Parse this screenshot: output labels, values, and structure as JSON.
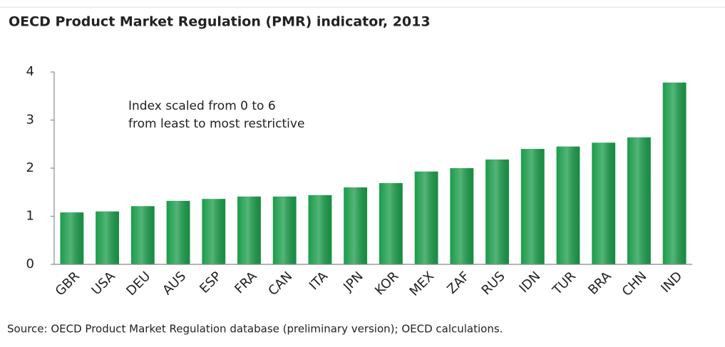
{
  "chart_data": {
    "type": "bar",
    "title": "OECD Product Market Regulation (PMR) indicator, 2013",
    "annotation": [
      "Index scaled from 0 to 6",
      "from least to most restrictive"
    ],
    "source": "Source: OECD Product Market Regulation database (preliminary version); OECD calculations.",
    "categories": [
      "GBR",
      "USA",
      "DEU",
      "AUS",
      "ESP",
      "FRA",
      "CAN",
      "ITA",
      "JPN",
      "KOR",
      "MEX",
      "ZAF",
      "RUS",
      "IDN",
      "TUR",
      "BRA",
      "CHN",
      "IND"
    ],
    "values": [
      1.08,
      1.1,
      1.21,
      1.32,
      1.36,
      1.41,
      1.41,
      1.44,
      1.6,
      1.69,
      1.93,
      2.0,
      2.18,
      2.4,
      2.45,
      2.53,
      2.64,
      3.78
    ],
    "color": "#1a9c4a",
    "ylim": [
      0,
      4
    ],
    "yticks": [
      0,
      1,
      2,
      3,
      4
    ],
    "grid": false
  }
}
